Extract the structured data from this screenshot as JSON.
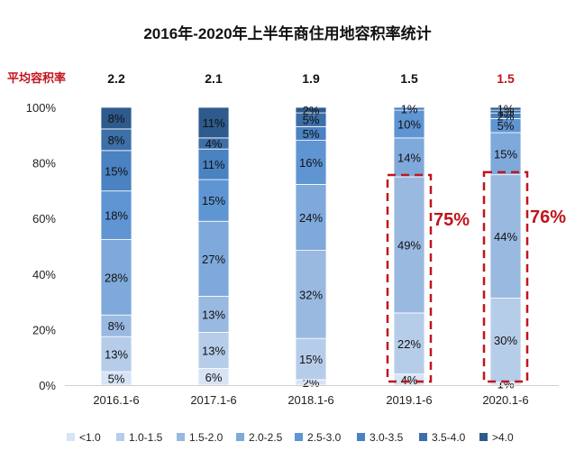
{
  "colors": {
    "series": [
      "#d6e4f5",
      "#b6cdea",
      "#9ab9e1",
      "#7fa9db",
      "#5f95d3",
      "#4a82c2",
      "#3d6fa8",
      "#2e5a8c"
    ],
    "highlight": "#c0151b"
  },
  "chart_data": {
    "type": "bar",
    "stacked": true,
    "title": "2016年-2020年上半年商住用地容积率统计",
    "categories": [
      "2016.1-6",
      "2017.1-6",
      "2018.1-6",
      "2019.1-6",
      "2020.1-6"
    ],
    "ylim": [
      0,
      100
    ],
    "yticks": [
      "0%",
      "20%",
      "40%",
      "60%",
      "80%",
      "100%"
    ],
    "series": [
      {
        "name": "<1.0",
        "values": [
          5,
          6,
          2,
          4,
          1
        ],
        "labels": [
          "5%",
          "6%",
          "2%",
          "4%",
          "1%"
        ]
      },
      {
        "name": "1.0-1.5",
        "values": [
          13,
          13,
          15,
          22,
          30
        ],
        "labels": [
          "13%",
          "13%",
          "15%",
          "22%",
          "30%"
        ]
      },
      {
        "name": "1.5-2.0",
        "values": [
          8,
          13,
          32,
          49,
          44
        ],
        "labels": [
          "8%",
          "13%",
          "32%",
          "49%",
          "44%"
        ]
      },
      {
        "name": "2.0-2.5",
        "values": [
          28,
          27,
          24,
          14,
          15
        ],
        "labels": [
          "28%",
          "27%",
          "24%",
          "14%",
          "15%"
        ]
      },
      {
        "name": "2.5-3.0",
        "values": [
          18,
          15,
          16,
          10,
          5
        ],
        "labels": [
          "18%",
          "15%",
          "16%",
          "10%",
          "5%"
        ]
      },
      {
        "name": "3.0-3.5",
        "values": [
          15,
          11,
          5,
          1,
          2
        ],
        "labels": [
          "15%",
          "11%",
          "5%",
          "1%",
          "2%"
        ]
      },
      {
        "name": "3.5-4.0",
        "values": [
          8,
          4,
          5,
          0,
          1
        ],
        "labels": [
          "8%",
          "4%",
          "5%",
          "",
          "1%"
        ]
      },
      {
        "name": ">4.0",
        "values": [
          8,
          11,
          2,
          0,
          1
        ],
        "labels": [
          "8%",
          "11%",
          "2%",
          "",
          "1%"
        ]
      }
    ],
    "avg_far": {
      "label": "平均容积率",
      "values": [
        "2.2",
        "2.1",
        "1.9",
        "1.5",
        "1.5"
      ],
      "highlight": [
        false,
        false,
        false,
        false,
        true
      ]
    },
    "annotations": [
      {
        "category_index": 3,
        "from": 0,
        "to": 75,
        "text": "75%"
      },
      {
        "category_index": 4,
        "from": 0,
        "to": 76,
        "text": "76%"
      }
    ]
  }
}
